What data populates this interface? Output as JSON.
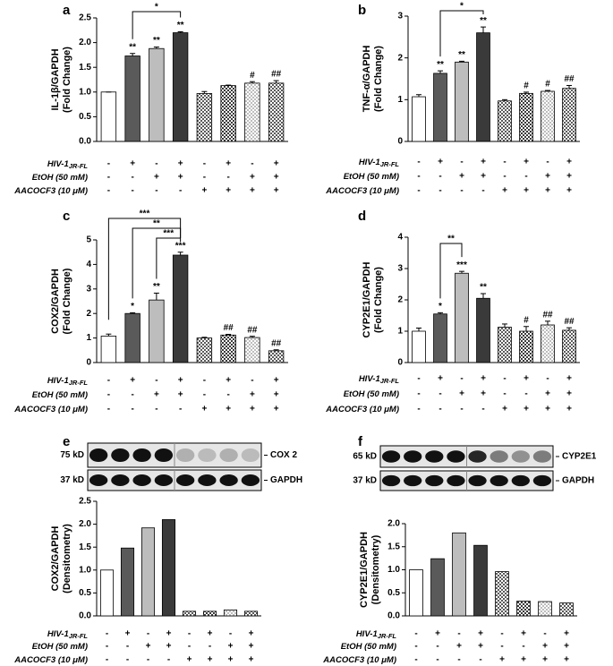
{
  "chart_data": [
    {
      "type": "bar",
      "panel": "a",
      "ylabel": [
        "IL-1β/GAPDH",
        "(Fold Change)"
      ],
      "values": [
        1.0,
        1.73,
        1.88,
        2.2,
        0.97,
        1.13,
        1.18,
        1.18
      ],
      "errors": [
        0.0,
        0.05,
        0.03,
        0.02,
        0.04,
        0.01,
        0.03,
        0.05
      ],
      "annotations": [
        null,
        "**",
        "**",
        "**",
        null,
        null,
        "#",
        "##"
      ],
      "brackets": [
        "*"
      ],
      "colors": [
        "#ffffff",
        "#5a5a5a",
        "#bdbdbd",
        "#3a3a3a",
        "#5a5a5a",
        "#3a3a3a",
        "#bdbdbd",
        "#5a5a5a"
      ],
      "hatch": [
        false,
        false,
        false,
        false,
        true,
        true,
        true,
        true
      ],
      "ylim": [
        0,
        2.5
      ],
      "yticks": [
        {
          "value": 0,
          "label": "0.0"
        },
        0.5,
        {
          "value": 1,
          "label": "1.0"
        },
        1.5,
        {
          "value": 2,
          "label": "2.0"
        },
        2.5
      ],
      "conditions": [
        {
          "label": "HIV-1",
          "subscript": "JR-FL",
          "signs": [
            "-",
            "+",
            "-",
            "+",
            "-",
            "+",
            "-",
            "+"
          ]
        },
        {
          "label": "EtOH (50 mM)",
          "signs": [
            "-",
            "-",
            "+",
            "+",
            "-",
            "-",
            "+",
            "+"
          ]
        },
        {
          "label": "AACOCF3 (10 μM)",
          "signs": [
            "-",
            "-",
            "-",
            "-",
            "+",
            "+",
            "+",
            "+"
          ]
        }
      ]
    },
    {
      "type": "bar",
      "panel": "b",
      "ylabel": [
        "TNF-α/GAPDH",
        "(Fold Change)"
      ],
      "values": [
        1.07,
        1.63,
        1.9,
        2.6,
        0.97,
        1.15,
        1.2,
        1.27
      ],
      "errors": [
        0.05,
        0.06,
        0.02,
        0.14,
        0.03,
        0.03,
        0.02,
        0.07
      ],
      "annotations": [
        null,
        "**",
        "**",
        "**",
        null,
        "#",
        "#",
        "##"
      ],
      "brackets": [
        "*"
      ],
      "colors": [
        "#ffffff",
        "#5a5a5a",
        "#bdbdbd",
        "#3a3a3a",
        "#5a5a5a",
        "#3a3a3a",
        "#bdbdbd",
        "#5a5a5a"
      ],
      "hatch": [
        false,
        false,
        false,
        false,
        true,
        true,
        true,
        true
      ],
      "ylim": [
        0,
        3
      ],
      "yticks": [
        0,
        1,
        2,
        3
      ],
      "conditions": [
        {
          "label": "HIV-1",
          "subscript": "JR-FL",
          "signs": [
            "-",
            "+",
            "-",
            "+",
            "-",
            "+",
            "-",
            "+"
          ]
        },
        {
          "label": "EtOH (50 mM)",
          "signs": [
            "-",
            "-",
            "+",
            "+",
            "-",
            "-",
            "+",
            "+"
          ]
        },
        {
          "label": "AACOCF3 (10 μM)",
          "signs": [
            "-",
            "-",
            "-",
            "-",
            "+",
            "+",
            "+",
            "+"
          ]
        }
      ]
    },
    {
      "type": "bar",
      "panel": "c",
      "ylabel": [
        "COX2/GAPDH",
        "(Fold Change)"
      ],
      "values": [
        1.08,
        2.0,
        2.55,
        4.38,
        1.0,
        1.12,
        1.02,
        0.48
      ],
      "errors": [
        0.08,
        0.03,
        0.28,
        0.12,
        0.03,
        0.03,
        0.05,
        0.04
      ],
      "annotations": [
        null,
        "*",
        "**",
        "***",
        null,
        "##",
        "##",
        "##"
      ],
      "brackets": [
        "***",
        "**",
        "***"
      ],
      "colors": [
        "#ffffff",
        "#5a5a5a",
        "#bdbdbd",
        "#3a3a3a",
        "#5a5a5a",
        "#3a3a3a",
        "#bdbdbd",
        "#5a5a5a"
      ],
      "hatch": [
        false,
        false,
        false,
        false,
        true,
        true,
        true,
        true
      ],
      "ylim": [
        0,
        5
      ],
      "yticks": [
        0,
        1,
        2,
        3,
        4,
        5
      ],
      "conditions": [
        {
          "label": "HIV-1",
          "subscript": "JR-FL",
          "signs": [
            "-",
            "+",
            "-",
            "+",
            "-",
            "+",
            "-",
            "+"
          ]
        },
        {
          "label": "EtOH (50 mM)",
          "signs": [
            "-",
            "-",
            "+",
            "+",
            "-",
            "-",
            "+",
            "+"
          ]
        },
        {
          "label": "AACOCF3 (10 μM)",
          "signs": [
            "-",
            "-",
            "-",
            "-",
            "+",
            "+",
            "+",
            "+"
          ]
        }
      ]
    },
    {
      "type": "bar",
      "panel": "d",
      "ylabel": [
        "CYP2E1/GAPDH",
        "(Fold Change)"
      ],
      "values": [
        1.0,
        1.55,
        2.85,
        2.05,
        1.13,
        1.0,
        1.2,
        1.03
      ],
      "errors": [
        0.1,
        0.04,
        0.06,
        0.15,
        0.1,
        0.15,
        0.12,
        0.08
      ],
      "annotations": [
        null,
        "*",
        "***",
        "**",
        null,
        "#",
        "##",
        "##"
      ],
      "brackets": [
        "**"
      ],
      "colors": [
        "#ffffff",
        "#5a5a5a",
        "#bdbdbd",
        "#3a3a3a",
        "#5a5a5a",
        "#3a3a3a",
        "#bdbdbd",
        "#5a5a5a"
      ],
      "hatch": [
        false,
        false,
        false,
        false,
        true,
        true,
        true,
        true
      ],
      "ylim": [
        0,
        4
      ],
      "yticks": [
        0,
        1,
        2,
        3,
        4
      ],
      "conditions": [
        {
          "label": "HIV-1",
          "subscript": "JR-FL",
          "signs": [
            "-",
            "+",
            "-",
            "+",
            "-",
            "+",
            "-",
            "+"
          ]
        },
        {
          "label": "EtOH (50 mM)",
          "signs": [
            "-",
            "-",
            "+",
            "+",
            "-",
            "-",
            "+",
            "+"
          ]
        },
        {
          "label": "AACOCF3 (10 μM)",
          "signs": [
            "-",
            "-",
            "-",
            "-",
            "+",
            "+",
            "+",
            "+"
          ]
        }
      ]
    },
    {
      "type": "bar",
      "panel": "e",
      "ylabel": [
        "COX2/GAPDH",
        "(Densitometry)"
      ],
      "blot": [
        {
          "size": "75 kD",
          "protein": "COX 2"
        },
        {
          "size": "37 kD",
          "protein": "GAPDH"
        }
      ],
      "values": [
        1.0,
        1.48,
        1.92,
        2.1,
        0.1,
        0.1,
        0.13,
        0.1
      ],
      "colors": [
        "#ffffff",
        "#5a5a5a",
        "#bdbdbd",
        "#3a3a3a",
        "#5a5a5a",
        "#3a3a3a",
        "#bdbdbd",
        "#5a5a5a"
      ],
      "hatch": [
        false,
        false,
        false,
        false,
        true,
        true,
        true,
        true
      ],
      "ylim": [
        0,
        2.5
      ],
      "yticks": [
        {
          "value": 0,
          "label": "0.0"
        },
        0.5,
        {
          "value": 1,
          "label": "1.0"
        },
        1.5,
        {
          "value": 2,
          "label": "2.0"
        },
        2.5
      ],
      "conditions": [
        {
          "label": "HIV-1",
          "subscript": "JR-FL",
          "signs": [
            "-",
            "+",
            "-",
            "+",
            "-",
            "+",
            "-",
            "+"
          ]
        },
        {
          "label": "EtOH (50 mM)",
          "signs": [
            "-",
            "-",
            "+",
            "+",
            "-",
            "-",
            "+",
            "+"
          ]
        },
        {
          "label": "AACOCF3 (10 μM)",
          "signs": [
            "-",
            "-",
            "-",
            "-",
            "+",
            "+",
            "+",
            "+"
          ]
        }
      ]
    },
    {
      "type": "bar",
      "panel": "f",
      "ylabel": [
        "CYP2E1/GAPDH",
        "(Densitometry)"
      ],
      "blot": [
        {
          "size": "65 kD",
          "protein": "CYP2E1"
        },
        {
          "size": "37 kD",
          "protein": "GAPDH"
        }
      ],
      "values": [
        1.0,
        1.24,
        1.8,
        1.53,
        0.96,
        0.32,
        0.31,
        0.28
      ],
      "colors": [
        "#ffffff",
        "#5a5a5a",
        "#bdbdbd",
        "#3a3a3a",
        "#5a5a5a",
        "#3a3a3a",
        "#bdbdbd",
        "#5a5a5a"
      ],
      "hatch": [
        false,
        false,
        false,
        false,
        true,
        true,
        true,
        true
      ],
      "ylim": [
        0,
        2
      ],
      "yticks": [
        {
          "value": 0,
          "label": "0.0"
        },
        0.5,
        {
          "value": 1,
          "label": "1.0"
        },
        1.5,
        {
          "value": 2,
          "label": "2.0"
        }
      ],
      "conditions": [
        {
          "label": "HIV-1",
          "subscript": "JR-FL",
          "signs": [
            "-",
            "+",
            "-",
            "+",
            "-",
            "+",
            "-",
            "+"
          ]
        },
        {
          "label": "EtOH (50 mM)",
          "signs": [
            "-",
            "-",
            "+",
            "+",
            "-",
            "-",
            "+",
            "+"
          ]
        },
        {
          "label": "AACOCF3 (10 μM)",
          "signs": [
            "-",
            "-",
            "-",
            "-",
            "+",
            "+",
            "+",
            "+"
          ]
        }
      ]
    }
  ]
}
